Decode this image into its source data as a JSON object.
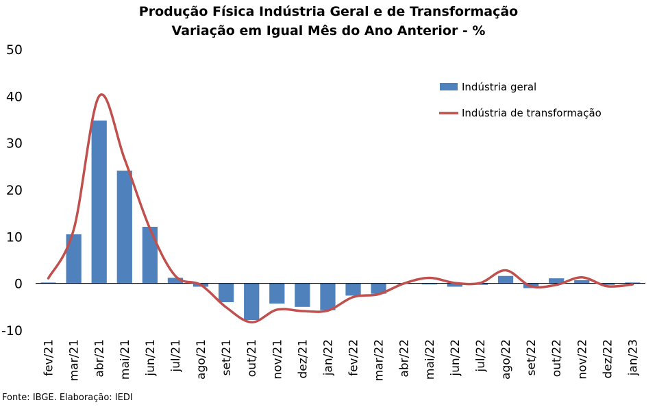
{
  "chart_data": {
    "type": "bar",
    "title": "Produção Física Indústria Geral e de Transformação",
    "subtitle": "Variação em Igual Mês do Ano Anterior - %",
    "categories": [
      "fev/21",
      "mar/21",
      "abr/21",
      "mai/21",
      "jun/21",
      "jul/21",
      "ago/21",
      "set/21",
      "out/21",
      "nov/21",
      "dez/21",
      "jan/22",
      "fev/22",
      "mar/22",
      "abr/22",
      "mai/22",
      "jun/22",
      "jul/22",
      "ago/22",
      "set/22",
      "out/22",
      "nov/22",
      "dez/22",
      "jan/23"
    ],
    "yticks": [
      50,
      40,
      30,
      20,
      10,
      0,
      -10
    ],
    "ylim": [
      -10,
      50
    ],
    "series": [
      {
        "name": "Indústria geral",
        "kind": "bar",
        "color": "#4F81BD",
        "values": [
          0.2,
          10.5,
          34.8,
          24.1,
          12.1,
          1.2,
          -0.7,
          -4.0,
          -7.8,
          -4.3,
          -5.0,
          -5.7,
          -2.6,
          -2.2,
          -0.1,
          -0.2,
          -0.7,
          -0.3,
          1.6,
          -1.0,
          1.1,
          0.7,
          -0.3,
          0.2
        ]
      },
      {
        "name": "Indústria de transformação",
        "kind": "line",
        "color": "#C0504D",
        "values": [
          1.1,
          11.5,
          40.0,
          26.6,
          11.7,
          1.6,
          -0.3,
          -5.1,
          -8.3,
          -5.6,
          -5.9,
          -5.8,
          -2.9,
          -2.3,
          0.0,
          1.2,
          0.1,
          0.1,
          2.8,
          -0.6,
          -0.3,
          1.3,
          -0.6,
          -0.2
        ]
      }
    ],
    "legend_position": "top-right",
    "grid": false
  },
  "footer": {
    "source": "Fonte: IBGE. Elaboração: IEDI"
  }
}
